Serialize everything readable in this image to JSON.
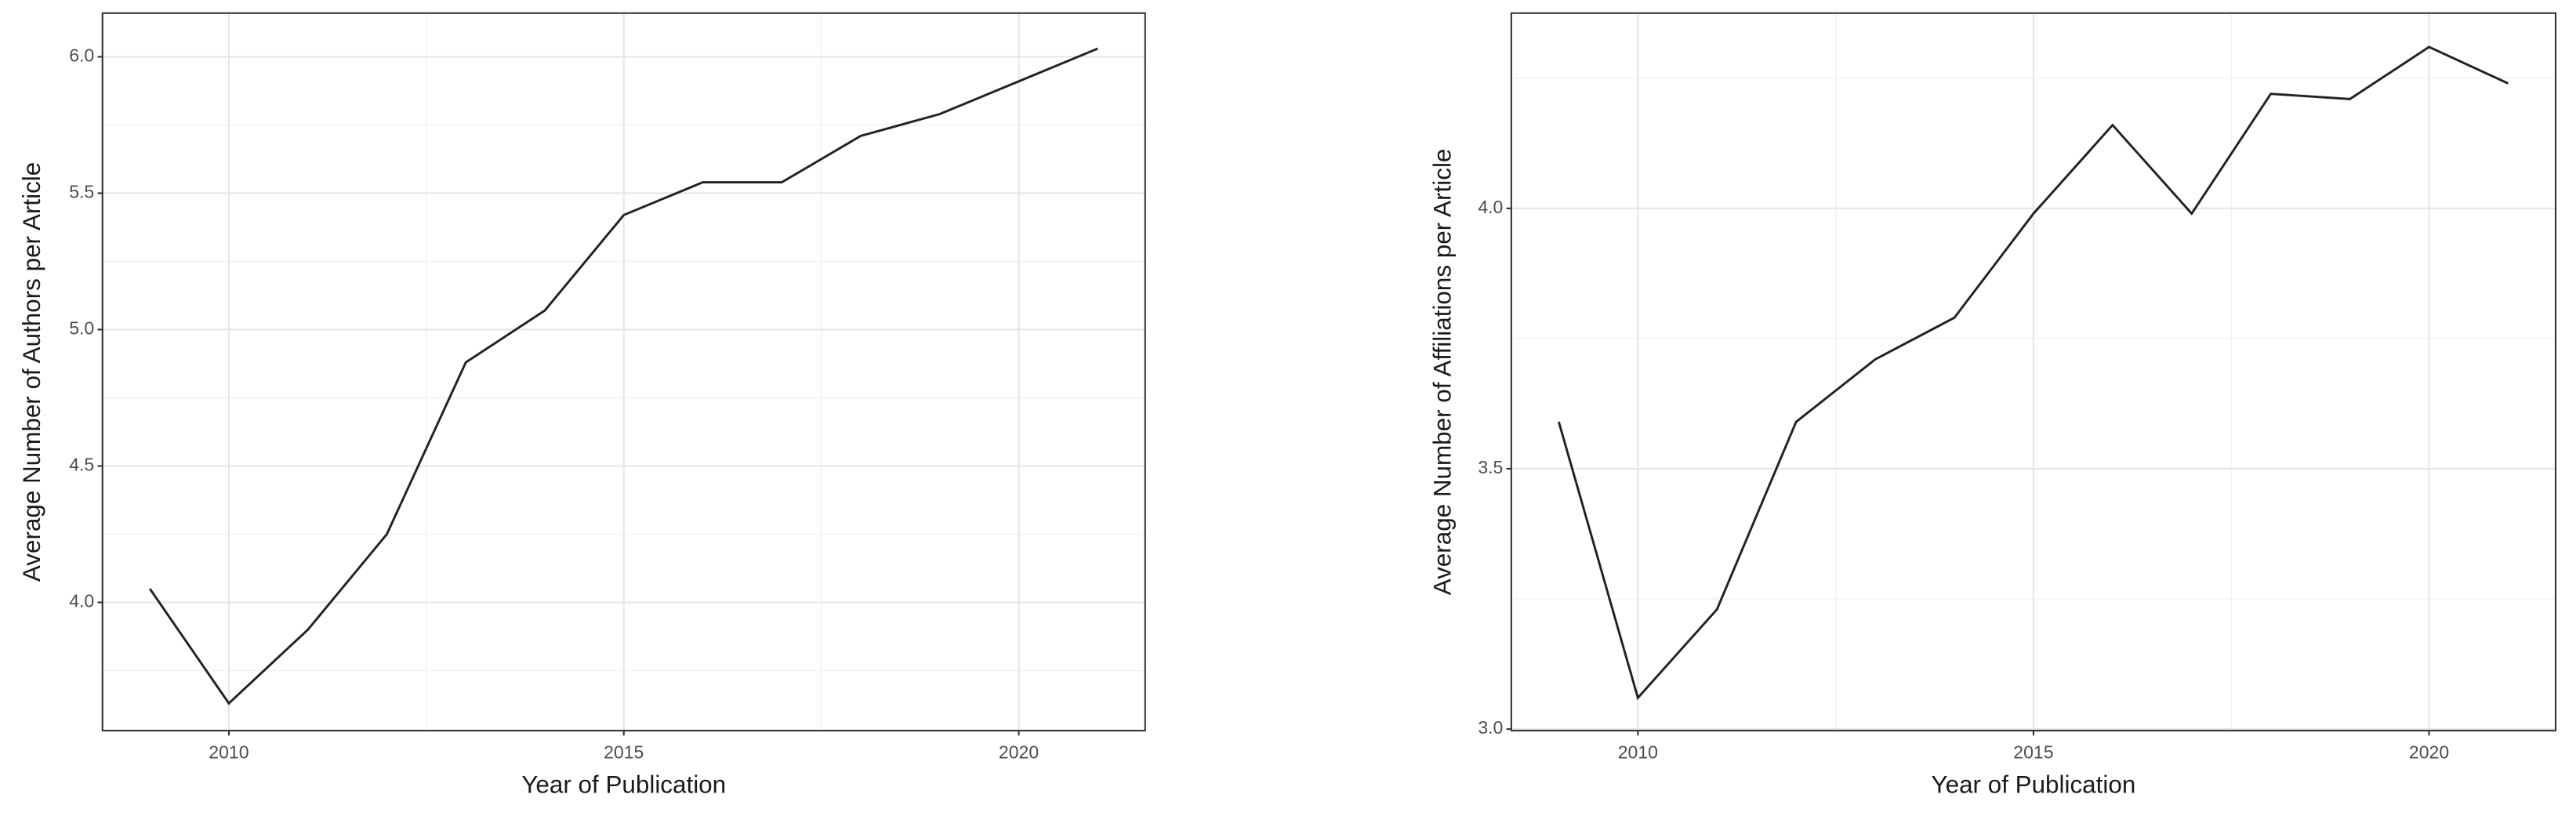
{
  "chart_data": [
    {
      "type": "line",
      "x_label": "Year of Publication",
      "y_label": "Average Number of Authors per Article",
      "x": [
        2009,
        2010,
        2011,
        2012,
        2013,
        2014,
        2015,
        2016,
        2017,
        2018,
        2019,
        2020,
        2021
      ],
      "values": [
        4.05,
        3.63,
        3.9,
        4.25,
        4.88,
        5.07,
        5.42,
        5.54,
        5.54,
        5.71,
        5.79,
        5.91,
        6.03
      ],
      "color": "#222222",
      "xlim": [
        2008.4,
        2021.6
      ],
      "xticks": [
        2010,
        2015,
        2020
      ],
      "ylim": [
        3.53,
        6.16
      ],
      "yticks": [
        {
          "value": 4,
          "label": "4.0"
        },
        {
          "value": 4.5,
          "label": "4.5"
        },
        {
          "value": 5,
          "label": "5.0"
        },
        {
          "value": 5.5,
          "label": "5.5"
        },
        {
          "value": 6,
          "label": "6.0"
        }
      ],
      "grid": true
    },
    {
      "type": "line",
      "x_label": "Year of Publication",
      "y_label": "Average Number of Affiliations per Article",
      "x": [
        2009,
        2010,
        2011,
        2012,
        2013,
        2014,
        2015,
        2016,
        2017,
        2018,
        2019,
        2020,
        2021
      ],
      "values": [
        3.59,
        3.06,
        3.23,
        3.59,
        3.71,
        3.79,
        3.99,
        4.16,
        3.99,
        4.22,
        4.21,
        4.31,
        4.24
      ],
      "color": "#222222",
      "xlim": [
        2008.4,
        2021.6
      ],
      "xticks": [
        2010,
        2015,
        2020
      ],
      "ylim": [
        2.997,
        4.375
      ],
      "yticks": [
        {
          "value": 3,
          "label": "3.0"
        },
        {
          "value": 3.5,
          "label": "3.5"
        },
        {
          "value": 4,
          "label": "4.0"
        }
      ],
      "grid": true
    }
  ]
}
